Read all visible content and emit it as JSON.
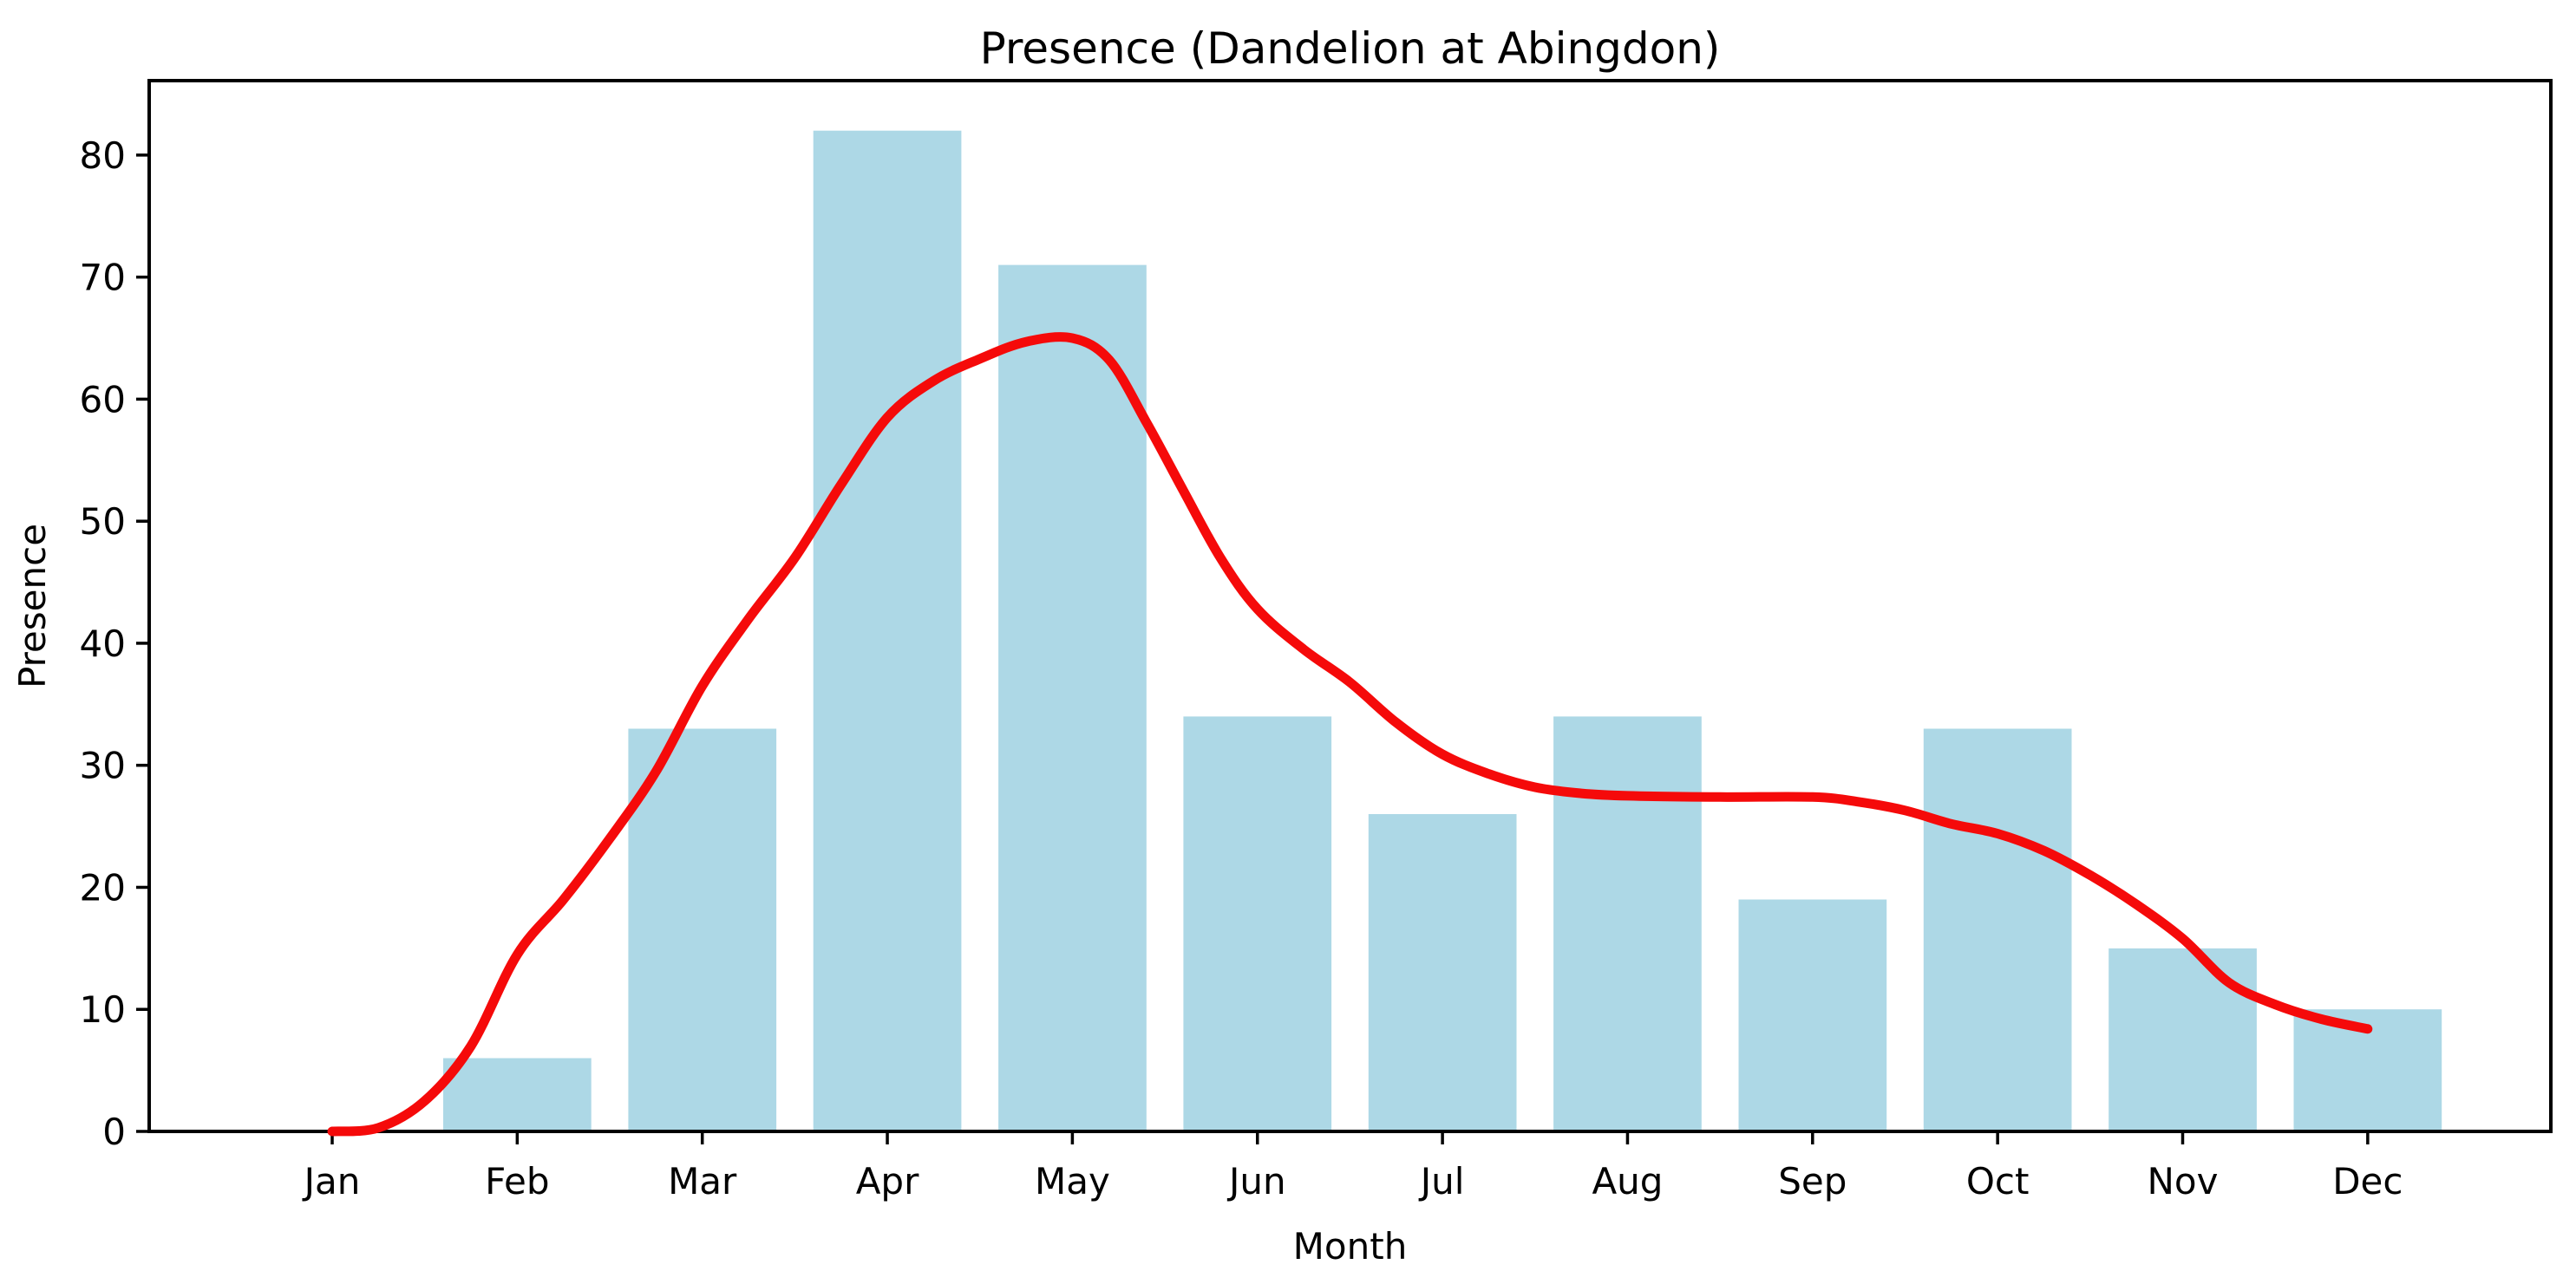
{
  "chart_data": {
    "type": "bar",
    "title": "Presence (Dandelion at Abingdon)",
    "xlabel": "Month",
    "ylabel": "Presence",
    "categories": [
      "Jan",
      "Feb",
      "Mar",
      "Apr",
      "May",
      "Jun",
      "Jul",
      "Aug",
      "Sep",
      "Oct",
      "Nov",
      "Dec"
    ],
    "values": [
      0,
      6,
      33,
      82,
      71,
      34,
      26,
      34,
      19,
      33,
      15,
      10
    ],
    "yticks": [
      0,
      10,
      20,
      30,
      40,
      50,
      60,
      70,
      80
    ],
    "ylim": [
      0,
      86.1
    ],
    "grid": false,
    "legend": false,
    "background": "#ffffff",
    "bar_color": "#add8e6",
    "axis_color": "#000000",
    "series": [
      {
        "name": "monthly-presence-bars",
        "type": "bar",
        "color": "#add8e6",
        "values": [
          0,
          6,
          33,
          82,
          71,
          34,
          26,
          34,
          19,
          33,
          15,
          10
        ]
      },
      {
        "name": "smoothed-trend-line",
        "type": "line",
        "color": "#f50a0a",
        "line_width": 11,
        "points": [
          [
            0,
            0
          ],
          [
            0.25,
            0.3
          ],
          [
            0.5,
            2.5
          ],
          [
            0.75,
            7
          ],
          [
            1.0,
            14.5
          ],
          [
            1.25,
            19
          ],
          [
            1.5,
            24
          ],
          [
            1.75,
            29.5
          ],
          [
            2.0,
            36.5
          ],
          [
            2.25,
            42
          ],
          [
            2.5,
            47
          ],
          [
            2.75,
            53
          ],
          [
            3.0,
            58.5
          ],
          [
            3.25,
            61.5
          ],
          [
            3.5,
            63.3
          ],
          [
            3.75,
            64.7
          ],
          [
            4.0,
            65
          ],
          [
            4.2,
            63.2
          ],
          [
            4.4,
            58.1
          ],
          [
            4.6,
            52.5
          ],
          [
            4.8,
            47
          ],
          [
            5.0,
            42.8
          ],
          [
            5.25,
            39.5
          ],
          [
            5.5,
            36.8
          ],
          [
            5.75,
            33.5
          ],
          [
            6.0,
            30.9
          ],
          [
            6.25,
            29.3
          ],
          [
            6.5,
            28.2
          ],
          [
            6.75,
            27.7
          ],
          [
            7.0,
            27.5
          ],
          [
            7.5,
            27.4
          ],
          [
            8.0,
            27.4
          ],
          [
            8.25,
            27.0
          ],
          [
            8.5,
            26.3
          ],
          [
            8.75,
            25.2
          ],
          [
            9.0,
            24.4
          ],
          [
            9.25,
            23.0
          ],
          [
            9.5,
            21.0
          ],
          [
            9.75,
            18.6
          ],
          [
            10.0,
            15.8
          ],
          [
            10.25,
            12.2
          ],
          [
            10.5,
            10.4
          ],
          [
            10.75,
            9.2
          ],
          [
            11.0,
            8.4
          ]
        ]
      }
    ]
  }
}
